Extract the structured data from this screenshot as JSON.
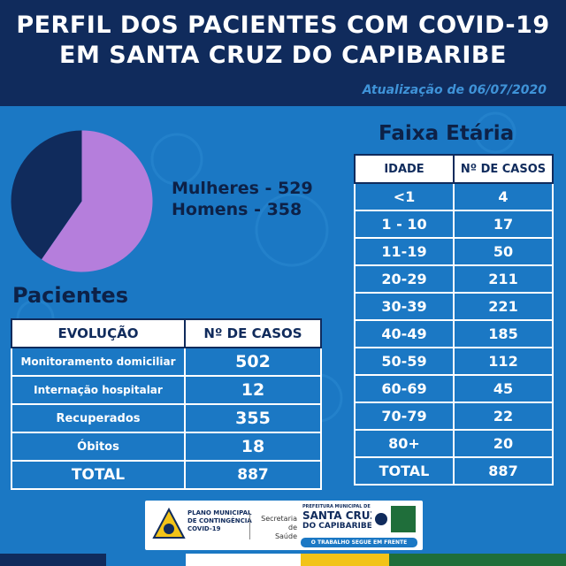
{
  "header": {
    "title_line1": "PERFIL DOS PACIENTES COM COVID-19",
    "title_line2": "EM SANTA CRUZ DO CAPIBARIBE",
    "update": "Atualização de 06/07/2020"
  },
  "colors": {
    "background": "#1b78c4",
    "header": "#102b5c",
    "women": "#b57edc",
    "men": "#102b5c"
  },
  "gender": {
    "women_label": "Mulheres - 529",
    "men_label": "Homens - 358"
  },
  "patients": {
    "title": "Pacientes",
    "col_evolution": "EVOLUÇÃO",
    "col_cases": "Nº DE CASOS",
    "rows": [
      {
        "label": "Monitoramento domiciliar",
        "value": "502"
      },
      {
        "label": "Internação hospitalar",
        "value": "12"
      },
      {
        "label": "Recuperados",
        "value": "355"
      },
      {
        "label": "Óbitos",
        "value": "18"
      }
    ],
    "total_label": "TOTAL",
    "total_value": "887"
  },
  "age": {
    "title": "Faixa Etária",
    "col_age": "IDADE",
    "col_cases": "Nº DE CASOS",
    "rows": [
      {
        "label": "<1",
        "value": "4"
      },
      {
        "label": "1 - 10",
        "value": "17"
      },
      {
        "label": "11-19",
        "value": "50"
      },
      {
        "label": "20-29",
        "value": "211"
      },
      {
        "label": "30-39",
        "value": "221"
      },
      {
        "label": "40-49",
        "value": "185"
      },
      {
        "label": "50-59",
        "value": "112"
      },
      {
        "label": "60-69",
        "value": "45"
      },
      {
        "label": "70-79",
        "value": "22"
      },
      {
        "label": "80+",
        "value": "20"
      }
    ],
    "total_label": "TOTAL",
    "total_value": "887"
  },
  "footer": {
    "plan_line1": "PLANO MUNICIPAL",
    "plan_line2": "DE CONTINGÊNCIA",
    "plan_line3": "COVID-19",
    "secretaria_line1": "Secretaria de",
    "secretaria_line2": "Saúde",
    "pref_small": "PREFEITURA MUNICIPAL DE",
    "pref_line1": "SANTA CRUZ",
    "pref_line2": "DO CAPIBARIBE",
    "slogan": "O TRABALHO SEGUE EM FRENTE"
  },
  "chart_data": {
    "type": "pie",
    "categories": [
      "Mulheres",
      "Homens"
    ],
    "values": [
      529,
      358
    ],
    "colors": [
      "#b57edc",
      "#102b5c"
    ],
    "legend": "right"
  }
}
